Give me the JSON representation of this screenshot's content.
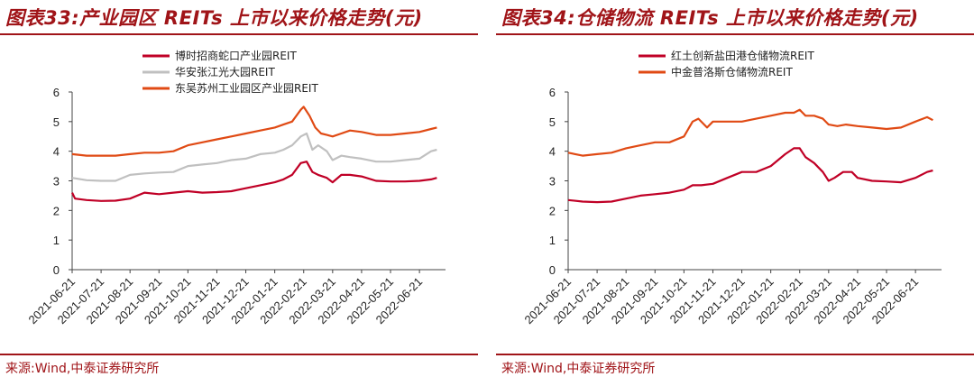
{
  "left": {
    "title": "图表33:产业园区 REITs 上市以来价格走势(元)",
    "source": "来源:Wind,中泰证券研究所"
  },
  "right": {
    "title": "图表34:仓储物流 REITs 上市以来价格走势(元)",
    "source": "来源:Wind,中泰证券研究所"
  },
  "chart_data": [
    {
      "type": "line",
      "title": "",
      "ylim": [
        0,
        6
      ],
      "yticks": [
        0,
        1,
        2,
        3,
        4,
        5,
        6
      ],
      "xlim": [
        0,
        12.9
      ],
      "categories": [
        "2021-06-21",
        "2021-07-21",
        "2021-08-21",
        "2021-09-21",
        "2021-10-21",
        "2021-11-21",
        "2021-12-21",
        "2022-01-21",
        "2022-02-21",
        "2022-03-21",
        "2022-04-21",
        "2022-05-21",
        "2022-06-21"
      ],
      "legend": "top-left",
      "series": [
        {
          "name": "博时招商蛇口产业园REIT",
          "color": "#c00026",
          "x": [
            0,
            0.1,
            0.5,
            1.0,
            1.5,
            2.0,
            2.5,
            3.0,
            3.5,
            4.0,
            4.5,
            5.0,
            5.5,
            6.0,
            6.5,
            7.0,
            7.3,
            7.6,
            7.9,
            8.1,
            8.3,
            8.5,
            8.8,
            9.0,
            9.3,
            9.6,
            10.0,
            10.5,
            11.0,
            11.5,
            12.0,
            12.4,
            12.6
          ],
          "values": [
            2.6,
            2.4,
            2.35,
            2.32,
            2.33,
            2.4,
            2.6,
            2.55,
            2.6,
            2.65,
            2.6,
            2.62,
            2.65,
            2.75,
            2.85,
            2.95,
            3.05,
            3.2,
            3.6,
            3.65,
            3.3,
            3.2,
            3.1,
            2.95,
            3.2,
            3.2,
            3.15,
            3.0,
            2.98,
            2.98,
            3.0,
            3.05,
            3.1
          ]
        },
        {
          "name": "华安张江光大园REIT",
          "color": "#c0c0c0",
          "x": [
            0,
            0.5,
            1.0,
            1.5,
            2.0,
            2.5,
            3.0,
            3.5,
            4.0,
            4.5,
            5.0,
            5.5,
            6.0,
            6.5,
            7.0,
            7.3,
            7.6,
            7.9,
            8.1,
            8.3,
            8.5,
            8.8,
            9.0,
            9.3,
            9.6,
            10.0,
            10.5,
            11.0,
            11.5,
            12.0,
            12.4,
            12.6
          ],
          "values": [
            3.1,
            3.02,
            3.0,
            3.0,
            3.2,
            3.25,
            3.28,
            3.3,
            3.5,
            3.55,
            3.6,
            3.7,
            3.75,
            3.9,
            3.95,
            4.05,
            4.2,
            4.5,
            4.6,
            4.05,
            4.2,
            4.0,
            3.7,
            3.85,
            3.8,
            3.75,
            3.65,
            3.65,
            3.7,
            3.75,
            4.0,
            4.05
          ]
        },
        {
          "name": "东吴苏州工业园区产业园REIT",
          "color": "#e04a14",
          "x": [
            0,
            0.5,
            1.0,
            1.5,
            2.0,
            2.5,
            3.0,
            3.5,
            4.0,
            4.5,
            5.0,
            5.5,
            6.0,
            6.5,
            7.0,
            7.3,
            7.6,
            7.9,
            8.0,
            8.2,
            8.4,
            8.6,
            8.8,
            9.0,
            9.3,
            9.6,
            10.0,
            10.5,
            11.0,
            11.5,
            12.0,
            12.4,
            12.6
          ],
          "values": [
            3.9,
            3.85,
            3.85,
            3.85,
            3.9,
            3.95,
            3.95,
            4.0,
            4.2,
            4.3,
            4.4,
            4.5,
            4.6,
            4.7,
            4.8,
            4.9,
            5.0,
            5.4,
            5.5,
            5.2,
            4.8,
            4.6,
            4.55,
            4.5,
            4.6,
            4.7,
            4.65,
            4.55,
            4.55,
            4.6,
            4.65,
            4.75,
            4.8
          ]
        }
      ]
    },
    {
      "type": "line",
      "title": "",
      "ylim": [
        0,
        6
      ],
      "yticks": [
        0,
        1,
        2,
        3,
        4,
        5,
        6
      ],
      "xlim": [
        0,
        12.9
      ],
      "categories": [
        "2021-06-21",
        "2021-07-21",
        "2021-08-21",
        "2021-09-21",
        "2021-10-21",
        "2021-11-21",
        "2021-12-21",
        "2022-01-21",
        "2022-02-21",
        "2022-03-21",
        "2022-04-21",
        "2022-05-21",
        "2022-06-21"
      ],
      "legend": "top-left",
      "series": [
        {
          "name": "红土创新盐田港仓储物流REIT",
          "color": "#c00026",
          "x": [
            0,
            0.5,
            1.0,
            1.5,
            2.0,
            2.5,
            3.0,
            3.5,
            4.0,
            4.3,
            4.6,
            5.0,
            5.5,
            6.0,
            6.5,
            7.0,
            7.5,
            7.8,
            8.0,
            8.2,
            8.5,
            8.8,
            9.0,
            9.2,
            9.5,
            9.8,
            10.0,
            10.5,
            11.0,
            11.5,
            12.0,
            12.4,
            12.6
          ],
          "values": [
            2.35,
            2.3,
            2.28,
            2.3,
            2.4,
            2.5,
            2.55,
            2.6,
            2.7,
            2.85,
            2.85,
            2.9,
            3.1,
            3.3,
            3.3,
            3.5,
            3.9,
            4.1,
            4.1,
            3.8,
            3.6,
            3.3,
            3.0,
            3.1,
            3.3,
            3.3,
            3.1,
            3.0,
            2.98,
            2.95,
            3.1,
            3.3,
            3.35
          ]
        },
        {
          "name": "中金普洛斯仓储物流REIT",
          "color": "#e04a14",
          "x": [
            0,
            0.5,
            1.0,
            1.5,
            2.0,
            2.5,
            3.0,
            3.5,
            4.0,
            4.3,
            4.5,
            4.8,
            5.0,
            5.5,
            6.0,
            6.5,
            7.0,
            7.5,
            7.8,
            8.0,
            8.2,
            8.5,
            8.8,
            9.0,
            9.3,
            9.6,
            10.0,
            10.5,
            11.0,
            11.5,
            12.0,
            12.4,
            12.6
          ],
          "values": [
            3.95,
            3.85,
            3.9,
            3.95,
            4.1,
            4.2,
            4.3,
            4.3,
            4.5,
            5.0,
            5.1,
            4.8,
            5.0,
            5.0,
            5.0,
            5.1,
            5.2,
            5.3,
            5.3,
            5.4,
            5.2,
            5.2,
            5.1,
            4.9,
            4.85,
            4.9,
            4.85,
            4.8,
            4.75,
            4.8,
            5.0,
            5.15,
            5.05
          ]
        }
      ]
    }
  ]
}
